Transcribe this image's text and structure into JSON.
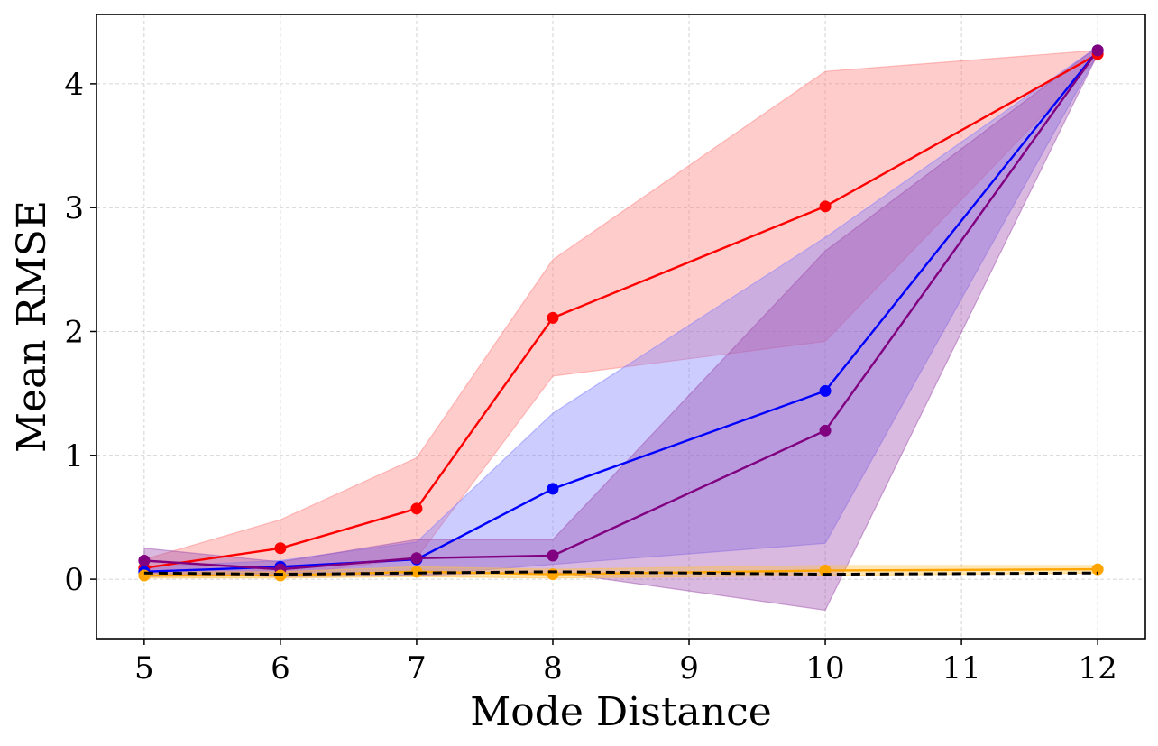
{
  "chart_data": {
    "type": "line",
    "title": "",
    "xlabel": "Mode Distance",
    "ylabel": "Mean RMSE",
    "xlim": [
      4.65,
      12.35
    ],
    "ylim": [
      -0.48,
      4.56
    ],
    "xticks": [
      5,
      6,
      7,
      8,
      9,
      10,
      11,
      12
    ],
    "yticks": [
      0,
      1,
      2,
      3,
      4
    ],
    "grid": true,
    "legend": "none",
    "x": [
      5,
      6,
      7,
      8,
      10,
      12
    ],
    "series": [
      {
        "color": "#ff0000",
        "band_color": "#ff8080",
        "values": [
          0.09,
          0.25,
          0.57,
          2.11,
          3.01,
          4.24
        ],
        "lower": [
          0.02,
          0.03,
          0.17,
          1.64,
          1.92,
          4.21
        ],
        "upper": [
          0.16,
          0.48,
          0.98,
          2.58,
          4.1,
          4.27
        ]
      },
      {
        "color": "#0000ff",
        "band_color": "#8080ff",
        "values": [
          0.06,
          0.1,
          0.16,
          0.73,
          1.52,
          4.27
        ],
        "lower": [
          0.02,
          0.05,
          0.03,
          0.12,
          0.29,
          4.24
        ],
        "upper": [
          0.1,
          0.15,
          0.3,
          1.34,
          2.76,
          4.3
        ]
      },
      {
        "color": "#800080",
        "band_color": "#a050b0",
        "values": [
          0.15,
          0.08,
          0.17,
          0.19,
          1.2,
          4.27
        ],
        "lower": [
          0.05,
          0.02,
          0.03,
          0.06,
          -0.25,
          4.24
        ],
        "upper": [
          0.25,
          0.14,
          0.32,
          0.32,
          2.65,
          4.3
        ]
      },
      {
        "color": "#ffa500",
        "band_color": "#ffc040",
        "values": [
          0.03,
          0.03,
          0.06,
          0.04,
          0.07,
          0.08
        ],
        "lower": [
          0.01,
          0.01,
          0.02,
          0.01,
          0.03,
          0.05
        ],
        "upper": [
          0.06,
          0.06,
          0.1,
          0.08,
          0.11,
          0.11
        ]
      },
      {
        "color": "#000000",
        "dashed": true,
        "markers": false,
        "values": [
          0.05,
          0.04,
          0.05,
          0.06,
          0.04,
          0.05
        ]
      }
    ]
  }
}
